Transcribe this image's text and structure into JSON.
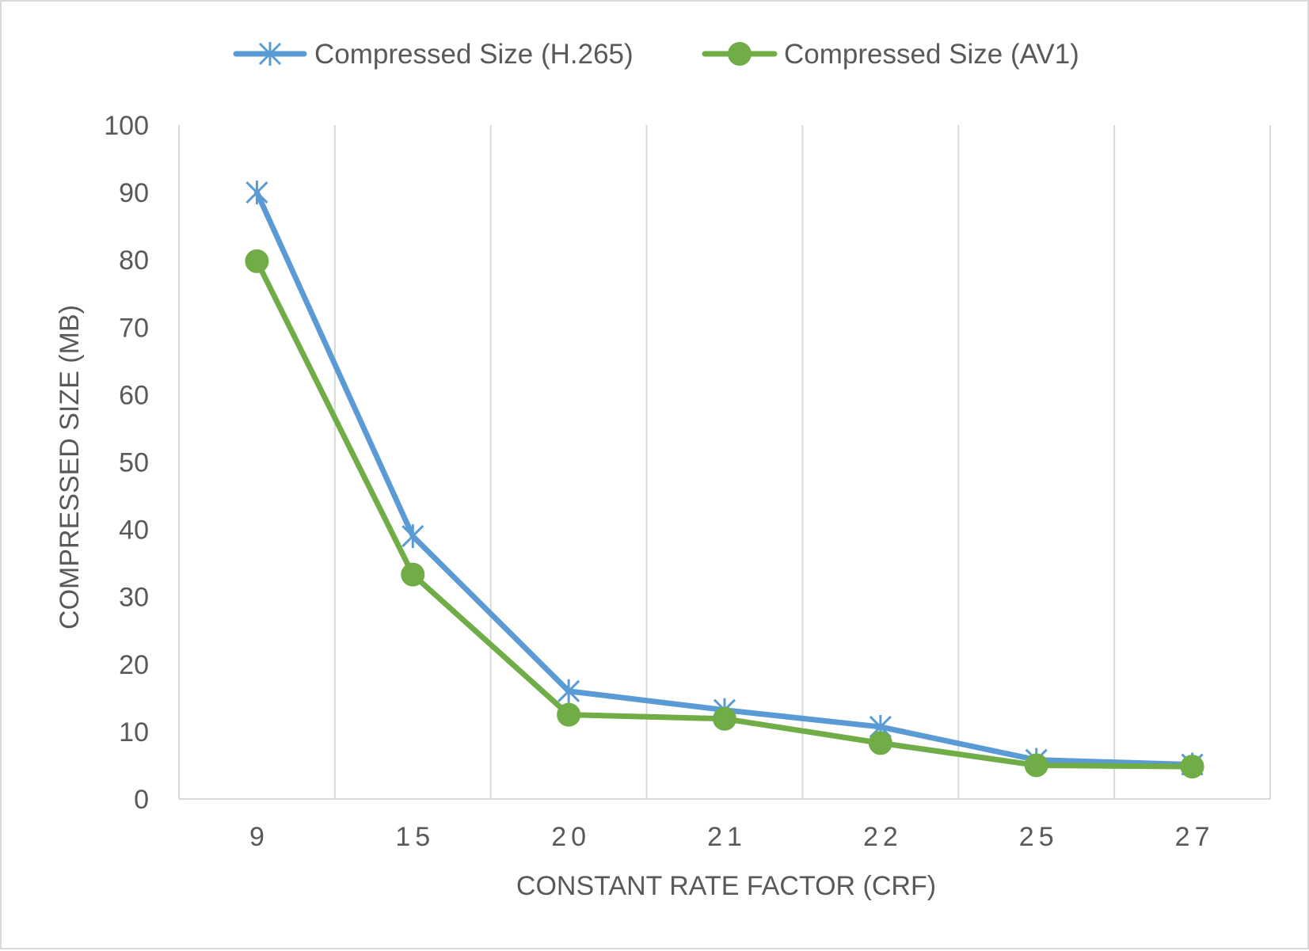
{
  "chart_data": {
    "type": "line",
    "title": "",
    "xlabel": "CONSTANT RATE FACTOR (CRF)",
    "ylabel": "COMPRESSED SIZE (MB)",
    "categories": [
      "9",
      "15",
      "20",
      "21",
      "22",
      "25",
      "27"
    ],
    "ylim": [
      0,
      100
    ],
    "yticks": [
      "0",
      "10",
      "20",
      "30",
      "40",
      "50",
      "60",
      "70",
      "80",
      "90",
      "100"
    ],
    "grid": "vertical",
    "legend_position": "top",
    "series": [
      {
        "name": "Compressed Size (H.265)",
        "marker": "asterisk",
        "color": "#5b9bd5",
        "values": [
          90,
          39,
          16,
          13.2,
          10.7,
          5.8,
          5.1
        ]
      },
      {
        "name": "Compressed Size (AV1)",
        "marker": "circle",
        "color": "#70ad47",
        "values": [
          79.8,
          33.3,
          12.5,
          11.9,
          8.3,
          5.0,
          4.8
        ]
      }
    ]
  }
}
